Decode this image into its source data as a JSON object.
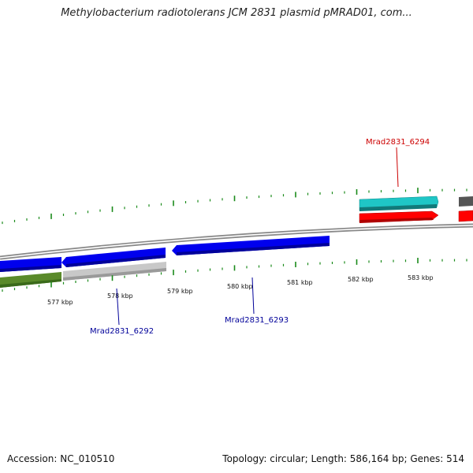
{
  "title": "Methylobacterium radiotolerans JCM 2831 plasmid pMRAD01, com...",
  "footer": {
    "accession": "Accession: NC_010510",
    "summary": "Topology: circular; Length: 586,164 bp; Genes: 514"
  },
  "scale_labels": [
    "577 kbp",
    "578 kbp",
    "579 kbp",
    "580 kbp",
    "581 kbp",
    "582 kbp",
    "583 kbp"
  ],
  "genes": [
    {
      "label": "Mrad2831_6294",
      "color": "#cc0000",
      "feature_color": "#ff0000"
    },
    {
      "label": "Mrad2831_6292",
      "color": "#000099",
      "feature_color": "#0000ee"
    },
    {
      "label": "Mrad2831_6293",
      "color": "#000099",
      "feature_color": "#0000ee"
    }
  ],
  "colors": {
    "cds_blue": "#0000ee",
    "cds_red": "#ff0000",
    "cds_cyan": "#1fc6c6",
    "cds_green": "#5a8a2a",
    "cds_grey": "#c8c8c8",
    "tick_green": "#1a8a1a",
    "backbone": "#888888"
  }
}
